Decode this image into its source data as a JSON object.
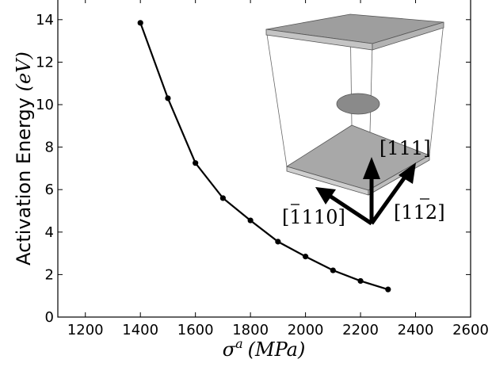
{
  "chart_data": {
    "type": "line",
    "x": [
      1400,
      1500,
      1600,
      1700,
      1800,
      1900,
      2000,
      2100,
      2200,
      2300
    ],
    "series": [
      {
        "values": [
          13.85,
          10.3,
          7.25,
          5.6,
          4.55,
          3.55,
          2.85,
          2.2,
          1.7,
          1.3
        ]
      }
    ],
    "xlim": [
      1100,
      2600
    ],
    "ylim": [
      0,
      15
    ],
    "xticks": [
      "1200",
      "1400",
      "1600",
      "1800",
      "2000",
      "2200",
      "2400",
      "2600"
    ],
    "yticks": [
      "0",
      "2",
      "4",
      "6",
      "8",
      "10",
      "12",
      "14"
    ],
    "ylabel": {
      "text": "Activation Energy",
      "unit": "(eV)"
    },
    "xlabel": {
      "symbol": "σ",
      "superscript": "a",
      "unit": "(MPa)"
    },
    "marker": "circle",
    "line_color": "#000000",
    "grid": false,
    "legend": "none",
    "inset": {
      "description": "3D simulation cell with a dislocation loop and crystal direction arrows",
      "directions": [
        {
          "bar": "",
          "digits": "111"
        },
        {
          "bar": "1",
          "digits": "110"
        },
        {
          "bar": "2",
          "digits": "112"
        }
      ]
    }
  }
}
